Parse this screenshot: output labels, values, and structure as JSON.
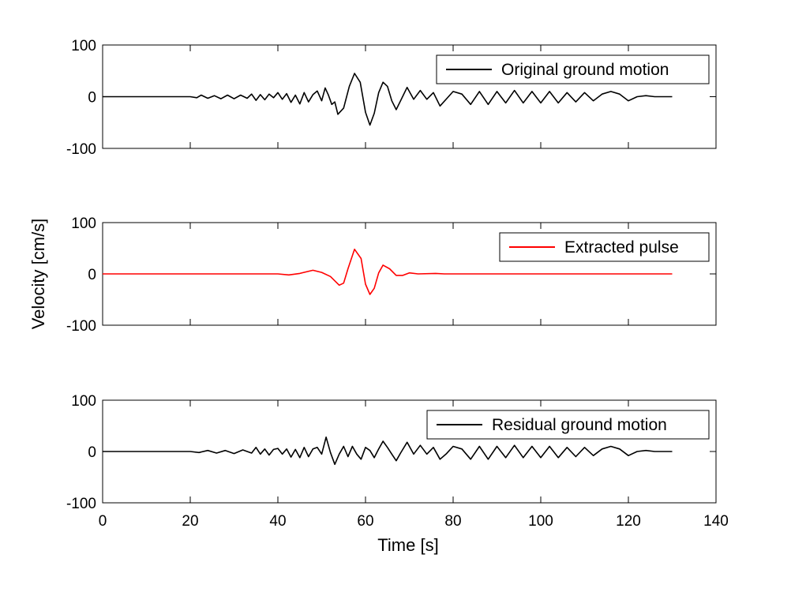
{
  "chart_data": {
    "type": "line",
    "xlabel": "Time [s]",
    "ylabel": "Velocity [cm/s]",
    "xlim": [
      0,
      140
    ],
    "xticks": [
      0,
      20,
      40,
      60,
      80,
      100,
      120,
      140
    ],
    "ylim": [
      -100,
      100
    ],
    "yticks": [
      -100,
      0,
      100
    ],
    "grid": false,
    "panels": [
      {
        "legend": {
          "label": "Original ground motion",
          "placement": "top-right"
        },
        "series": [
          {
            "name": "Original ground motion",
            "color": "#000000",
            "points": [
              [
                0,
                0
              ],
              [
                20,
                0
              ],
              [
                21.5,
                -2
              ],
              [
                22.5,
                3
              ],
              [
                24,
                -3
              ],
              [
                25.5,
                2
              ],
              [
                27,
                -4
              ],
              [
                28.5,
                3
              ],
              [
                30,
                -4
              ],
              [
                31.5,
                3
              ],
              [
                33,
                -3
              ],
              [
                34,
                5
              ],
              [
                35,
                -7
              ],
              [
                36,
                4
              ],
              [
                37,
                -6
              ],
              [
                38,
                5
              ],
              [
                39,
                -2
              ],
              [
                40,
                8
              ],
              [
                41,
                -5
              ],
              [
                42,
                6
              ],
              [
                43,
                -11
              ],
              [
                44,
                3
              ],
              [
                45,
                -14
              ],
              [
                46,
                8
              ],
              [
                47,
                -10
              ],
              [
                48,
                4
              ],
              [
                49,
                11
              ],
              [
                50,
                -8
              ],
              [
                50.8,
                17
              ],
              [
                51.5,
                4
              ],
              [
                52.3,
                -15
              ],
              [
                53,
                -10
              ],
              [
                53.7,
                -34
              ],
              [
                55,
                -22
              ],
              [
                56.3,
                20
              ],
              [
                57.5,
                45
              ],
              [
                58.8,
                28
              ],
              [
                60,
                -30
              ],
              [
                61,
                -55
              ],
              [
                62,
                -32
              ],
              [
                63,
                8
              ],
              [
                64,
                28
              ],
              [
                65,
                20
              ],
              [
                66,
                -8
              ],
              [
                67,
                -25
              ],
              [
                68,
                -8
              ],
              [
                69.5,
                18
              ],
              [
                71,
                -5
              ],
              [
                72.5,
                12
              ],
              [
                74,
                -5
              ],
              [
                75.5,
                8
              ],
              [
                77,
                -18
              ],
              [
                78.5,
                -4
              ],
              [
                80,
                10
              ],
              [
                82,
                5
              ],
              [
                84,
                -15
              ],
              [
                86,
                10
              ],
              [
                88,
                -15
              ],
              [
                90,
                10
              ],
              [
                92,
                -12
              ],
              [
                94,
                12
              ],
              [
                96,
                -12
              ],
              [
                98,
                10
              ],
              [
                100,
                -12
              ],
              [
                102,
                10
              ],
              [
                104,
                -12
              ],
              [
                106,
                8
              ],
              [
                108,
                -10
              ],
              [
                110,
                8
              ],
              [
                112,
                -8
              ],
              [
                114,
                5
              ],
              [
                116,
                10
              ],
              [
                118,
                5
              ],
              [
                120,
                -8
              ],
              [
                122,
                0
              ],
              [
                124,
                2
              ],
              [
                126,
                0
              ],
              [
                130,
                0
              ]
            ]
          }
        ]
      },
      {
        "legend": {
          "label": "Extracted pulse",
          "placement": "top-right"
        },
        "series": [
          {
            "name": "Extracted pulse",
            "color": "#ff0000",
            "points": [
              [
                0,
                0
              ],
              [
                35,
                0
              ],
              [
                40,
                0
              ],
              [
                42.5,
                -2
              ],
              [
                45,
                1
              ],
              [
                48,
                7
              ],
              [
                50,
                3
              ],
              [
                52,
                -5
              ],
              [
                54,
                -22
              ],
              [
                55,
                -18
              ],
              [
                56,
                10
              ],
              [
                57.5,
                48
              ],
              [
                59,
                30
              ],
              [
                60,
                -20
              ],
              [
                61,
                -40
              ],
              [
                62,
                -28
              ],
              [
                63,
                2
              ],
              [
                64,
                17
              ],
              [
                65.5,
                10
              ],
              [
                67,
                -3
              ],
              [
                68.5,
                -3
              ],
              [
                70,
                2
              ],
              [
                72,
                0
              ],
              [
                76,
                1
              ],
              [
                78,
                0
              ],
              [
                130,
                0
              ]
            ]
          }
        ]
      },
      {
        "legend": {
          "label": "Residual ground motion",
          "placement": "top-right"
        },
        "series": [
          {
            "name": "Residual ground motion",
            "color": "#000000",
            "points": [
              [
                0,
                0
              ],
              [
                20,
                0
              ],
              [
                22,
                -2
              ],
              [
                24,
                2
              ],
              [
                26,
                -3
              ],
              [
                28,
                2
              ],
              [
                30,
                -4
              ],
              [
                32,
                3
              ],
              [
                34,
                -3
              ],
              [
                35,
                8
              ],
              [
                36,
                -5
              ],
              [
                37,
                5
              ],
              [
                38,
                -7
              ],
              [
                39,
                4
              ],
              [
                40,
                6
              ],
              [
                41,
                -5
              ],
              [
                42,
                5
              ],
              [
                43,
                -11
              ],
              [
                44,
                4
              ],
              [
                45,
                -12
              ],
              [
                46,
                8
              ],
              [
                47,
                -10
              ],
              [
                48,
                5
              ],
              [
                49,
                8
              ],
              [
                50,
                -5
              ],
              [
                51,
                28
              ],
              [
                52,
                -2
              ],
              [
                53,
                -25
              ],
              [
                54,
                -5
              ],
              [
                55,
                10
              ],
              [
                56,
                -10
              ],
              [
                57,
                10
              ],
              [
                58,
                -5
              ],
              [
                59,
                -15
              ],
              [
                60,
                8
              ],
              [
                61,
                2
              ],
              [
                62,
                -12
              ],
              [
                63,
                5
              ],
              [
                64,
                20
              ],
              [
                65,
                8
              ],
              [
                66,
                -5
              ],
              [
                67,
                -18
              ],
              [
                68,
                -3
              ],
              [
                69.5,
                18
              ],
              [
                71,
                -5
              ],
              [
                72.5,
                12
              ],
              [
                74,
                -5
              ],
              [
                75.5,
                8
              ],
              [
                77,
                -15
              ],
              [
                78.5,
                -4
              ],
              [
                80,
                10
              ],
              [
                82,
                5
              ],
              [
                84,
                -15
              ],
              [
                86,
                10
              ],
              [
                88,
                -15
              ],
              [
                90,
                10
              ],
              [
                92,
                -12
              ],
              [
                94,
                12
              ],
              [
                96,
                -12
              ],
              [
                98,
                10
              ],
              [
                100,
                -12
              ],
              [
                102,
                10
              ],
              [
                104,
                -12
              ],
              [
                106,
                8
              ],
              [
                108,
                -10
              ],
              [
                110,
                8
              ],
              [
                112,
                -8
              ],
              [
                114,
                5
              ],
              [
                116,
                10
              ],
              [
                118,
                5
              ],
              [
                120,
                -8
              ],
              [
                122,
                0
              ],
              [
                124,
                2
              ],
              [
                126,
                0
              ],
              [
                130,
                0
              ]
            ]
          }
        ]
      }
    ]
  }
}
